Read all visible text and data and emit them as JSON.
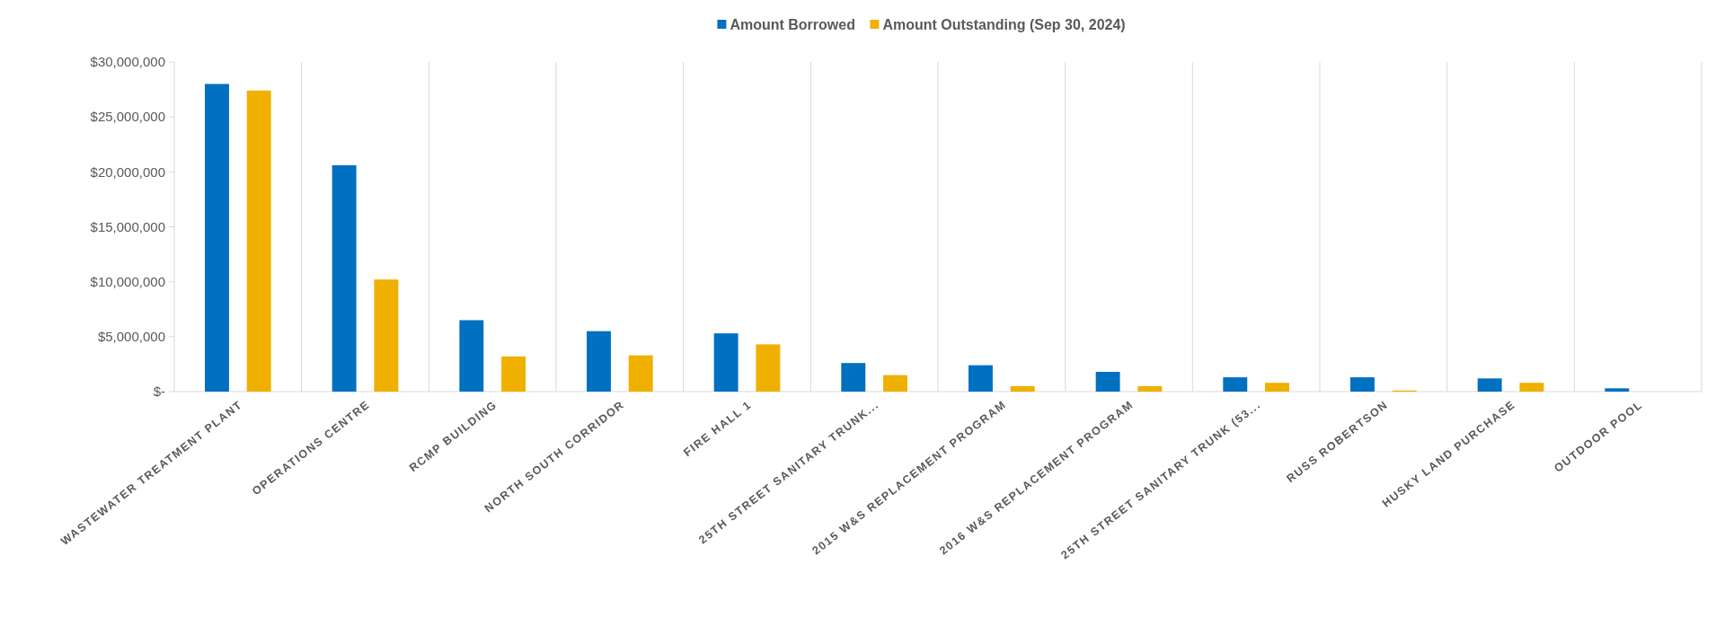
{
  "chart_data": {
    "type": "bar",
    "categories": [
      "WASTEWATER TREATMENT PLANT",
      "OPERATIONS CENTRE",
      "RCMP BUILDING",
      "NORTH SOUTH CORRIDOR",
      "FIRE HALL 1",
      "25TH STREET SANITARY TRUNK...",
      "2015 W&S REPLACEMENT PROGRAM",
      "2016 W&S REPLACEMENT PROGRAM",
      "25TH STREET SANITARY TRUNK (53...",
      "RUSS ROBERTSON",
      "HUSKY LAND PURCHASE",
      "OUTDOOR POOL"
    ],
    "series": [
      {
        "name": "Amount Borrowed",
        "color": "#0070c0",
        "values": [
          28000000,
          20600000,
          6500000,
          5500000,
          5300000,
          2600000,
          2400000,
          1800000,
          1300000,
          1300000,
          1200000,
          300000
        ]
      },
      {
        "name": "Amount Outstanding (Sep 30, 2024)",
        "color": "#f0b000",
        "values": [
          27400000,
          10200000,
          3200000,
          3300000,
          4300000,
          1500000,
          500000,
          500000,
          800000,
          100000,
          800000,
          0
        ]
      }
    ],
    "ylim": [
      0,
      30000000
    ],
    "yticks": [
      {
        "value": 0,
        "label": "$-"
      },
      {
        "value": 5000000,
        "label": "$5,000,000"
      },
      {
        "value": 10000000,
        "label": "$10,000,000"
      },
      {
        "value": 15000000,
        "label": "$15,000,000"
      },
      {
        "value": 20000000,
        "label": "$20,000,000"
      },
      {
        "value": 25000000,
        "label": "$25,000,000"
      },
      {
        "value": 30000000,
        "label": "$30,000,000"
      }
    ],
    "grid": "x",
    "legend": "top"
  }
}
